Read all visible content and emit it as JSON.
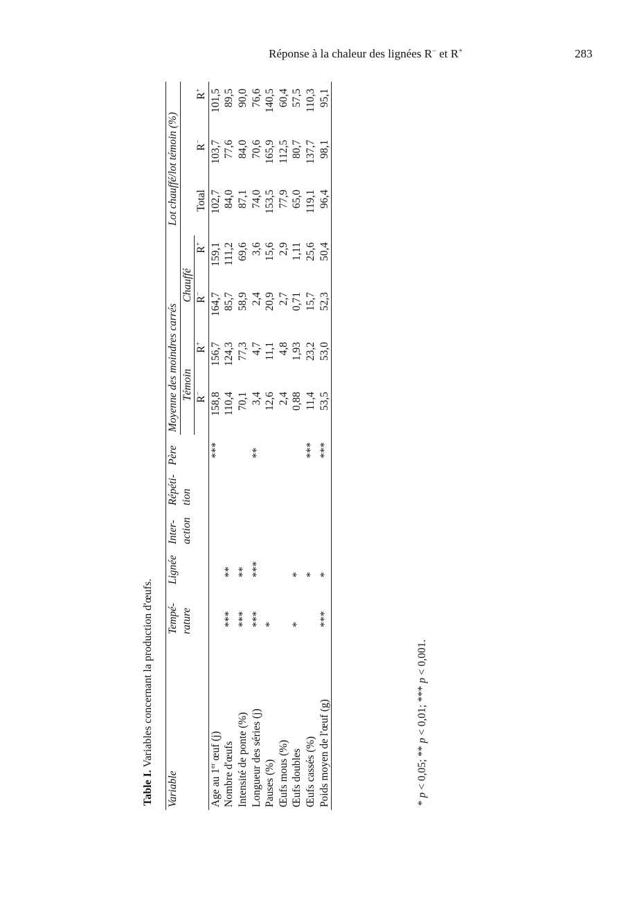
{
  "running_head": {
    "text_a": "Réponse à la chaleur des lignées R",
    "sup_a": "−",
    "text_b": " et R",
    "sup_b": "+"
  },
  "page_number": "283",
  "table": {
    "label": "Table I.",
    "caption": " Variables concernant la production d'œufs.",
    "headers": {
      "variable": "Variable",
      "temperature": [
        "Tempé-",
        "rature"
      ],
      "lignee": "Lignée",
      "interaction": [
        "Inter-",
        "action"
      ],
      "repetition": [
        "Répéti-",
        "tion"
      ],
      "pere": "Père",
      "moyenne": "Moyenne des moindres carrés",
      "lot": "Lot chauffé/lot témoin (%)",
      "temoin": "Témoin",
      "chauffe": "Chauffé",
      "total": "Total",
      "r_letter": "R",
      "minus": "−",
      "plus": "+"
    },
    "rows": [
      {
        "label": "Age au 1",
        "sup": "er",
        "label_b": " œuf (j)",
        "temp": "",
        "lignee": "",
        "inter": "",
        "rep": "",
        "pere": "***",
        "vals": [
          "158,8",
          "156,7",
          "164,7",
          "159,1",
          "102,7",
          "103,7",
          "101,5"
        ]
      },
      {
        "label": "Nombre d'œufs",
        "temp": "***",
        "lignee": "**",
        "inter": "",
        "rep": "",
        "pere": "",
        "vals": [
          "110,4",
          "124,3",
          "85,7",
          "111,2",
          "84,0",
          "77,6",
          "89,5"
        ]
      },
      {
        "label": "Intensité de ponte (%)",
        "temp": "***",
        "lignee": "**",
        "inter": "",
        "rep": "",
        "pere": "",
        "vals": [
          "70,1",
          "77,3",
          "58,9",
          "69,6",
          "87,1",
          "84,0",
          "90,0"
        ]
      },
      {
        "label": "Longueur des séries (j)",
        "temp": "***",
        "lignee": "***",
        "inter": "",
        "rep": "",
        "pere": "**",
        "vals": [
          "3,4",
          "4,7",
          "2,4",
          "3,6",
          "74,0",
          "70,6",
          "76,6"
        ]
      },
      {
        "label": "Pauses (%)",
        "temp": "*",
        "lignee": "",
        "inter": "",
        "rep": "",
        "pere": "",
        "vals": [
          "12,6",
          "11,1",
          "20,9",
          "15,6",
          "153,5",
          "165,9",
          "140,5"
        ]
      },
      {
        "label": "Œufs mous (%)",
        "temp": "",
        "lignee": "",
        "inter": "",
        "rep": "",
        "pere": "",
        "vals": [
          "2,4",
          "4,8",
          "2,7",
          "2,9",
          "77,9",
          "112,5",
          "60,4"
        ]
      },
      {
        "label": "Œufs doubles",
        "temp": "*",
        "lignee": "*",
        "inter": "",
        "rep": "",
        "pere": "",
        "vals": [
          "0,88",
          "1,93",
          "0,71",
          "1,11",
          "65,0",
          "80,7",
          "57,5"
        ]
      },
      {
        "label": "Œufs cassés (%)",
        "temp": "",
        "lignee": "*",
        "inter": "",
        "rep": "",
        "pere": "***",
        "vals": [
          "11,4",
          "23,2",
          "15,7",
          "25,6",
          "119,1",
          "137,7",
          "110,3"
        ]
      },
      {
        "label": "Poids moyen de l'œuf (g)",
        "temp": "***",
        "lignee": "*",
        "inter": "",
        "rep": "",
        "pere": "***",
        "vals": [
          "53,5",
          "53,0",
          "52,3",
          "50,4",
          "96,4",
          "98,1",
          "95,1"
        ]
      }
    ],
    "footnote": [
      "* ",
      "p",
      " < 0,05; ** ",
      "p",
      " < 0,01; *** ",
      "p",
      " < 0,001."
    ]
  }
}
